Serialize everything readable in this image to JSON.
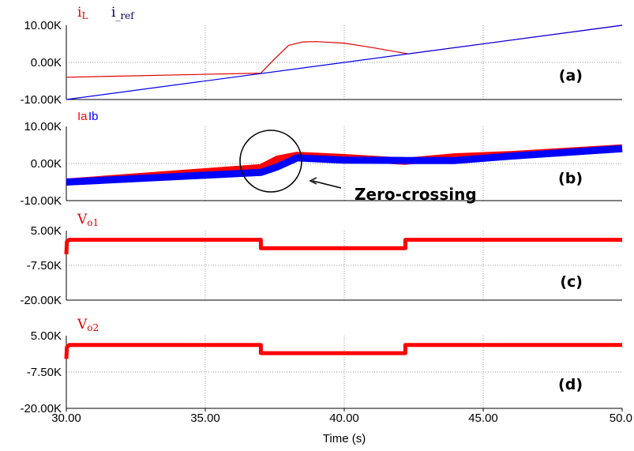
{
  "chart_data": [
    {
      "panel": "(a)",
      "type": "line",
      "legend": [
        {
          "name": "i",
          "sub": "L",
          "color": "#e00000"
        },
        {
          "name": "i",
          "sub": "_ref",
          "color": "#00005a"
        }
      ],
      "yticks": [
        "10.00K",
        "0.00K",
        "-10.00K"
      ],
      "ylim": [
        -10000,
        10000
      ],
      "series": [
        {
          "name": "iL",
          "color": "#e00000",
          "x": [
            30,
            37,
            37.5,
            38,
            38.5,
            39,
            40,
            41,
            42,
            42.3,
            50
          ],
          "y": [
            -4000,
            -2900,
            1000,
            4600,
            5500,
            5600,
            5200,
            4000,
            2700,
            2300,
            10000
          ]
        },
        {
          "name": "iref",
          "color": "#0000ee",
          "x": [
            30,
            50
          ],
          "y": [
            -10000,
            10000
          ]
        }
      ]
    },
    {
      "panel": "(b)",
      "type": "line",
      "legend": [
        {
          "name": "Ia",
          "color": "#ff0000"
        },
        {
          "name": "Ib",
          "color": "#0000ff"
        }
      ],
      "yticks": [
        "10.00K",
        "0.00K",
        "-10.00K"
      ],
      "ylim": [
        -10000,
        10000
      ],
      "annotation": "Zero-crossing",
      "series": [
        {
          "name": "Ia",
          "color": "#ff0000",
          "x": [
            30,
            37,
            37.6,
            38.3,
            40,
            42.2,
            44,
            46,
            50
          ],
          "y": [
            -5000,
            -1100,
            1200,
            2200,
            1600,
            600,
            1800,
            2400,
            4200
          ]
        },
        {
          "name": "Ib",
          "color": "#0000ff",
          "x": [
            30,
            37,
            37.6,
            38.3,
            40,
            42.2,
            44,
            46,
            50
          ],
          "y": [
            -5000,
            -2400,
            -900,
            1500,
            900,
            800,
            800,
            2000,
            4000
          ]
        }
      ]
    },
    {
      "panel": "(c)",
      "type": "line",
      "legend": [
        {
          "name": "V",
          "sub": "o1",
          "color": "#e00000"
        }
      ],
      "yticks": [
        "5.00K",
        "-7.50K",
        "-20.00K"
      ],
      "ylim": [
        -20000,
        5000
      ],
      "series": [
        {
          "name": "Vo1",
          "color": "#ff0000",
          "x": [
            30,
            30.02,
            30.1,
            37,
            37,
            42.2,
            42.2,
            50
          ],
          "y": [
            -3500,
            1000,
            1700,
            1700,
            -1300,
            -1300,
            1700,
            1700
          ]
        }
      ]
    },
    {
      "panel": "(d)",
      "type": "line",
      "legend": [
        {
          "name": "V",
          "sub": "o2",
          "color": "#e00000"
        }
      ],
      "yticks": [
        "5.00K",
        "-7.50K",
        "-20.00K"
      ],
      "ylim": [
        -20000,
        5000
      ],
      "series": [
        {
          "name": "Vo2",
          "color": "#ff0000",
          "x": [
            30,
            30.02,
            30.1,
            37,
            37,
            42.2,
            42.2,
            50
          ],
          "y": [
            -3000,
            1000,
            1800,
            1800,
            -1000,
            -1000,
            1800,
            1800
          ]
        }
      ]
    }
  ],
  "xaxis": {
    "ticks": [
      "30.00",
      "35.00",
      "40.00",
      "45.00",
      "50.0"
    ],
    "tick_values": [
      30,
      35,
      40,
      45,
      50
    ],
    "xlim": [
      30,
      50
    ],
    "xlabel": "Time (s)"
  }
}
